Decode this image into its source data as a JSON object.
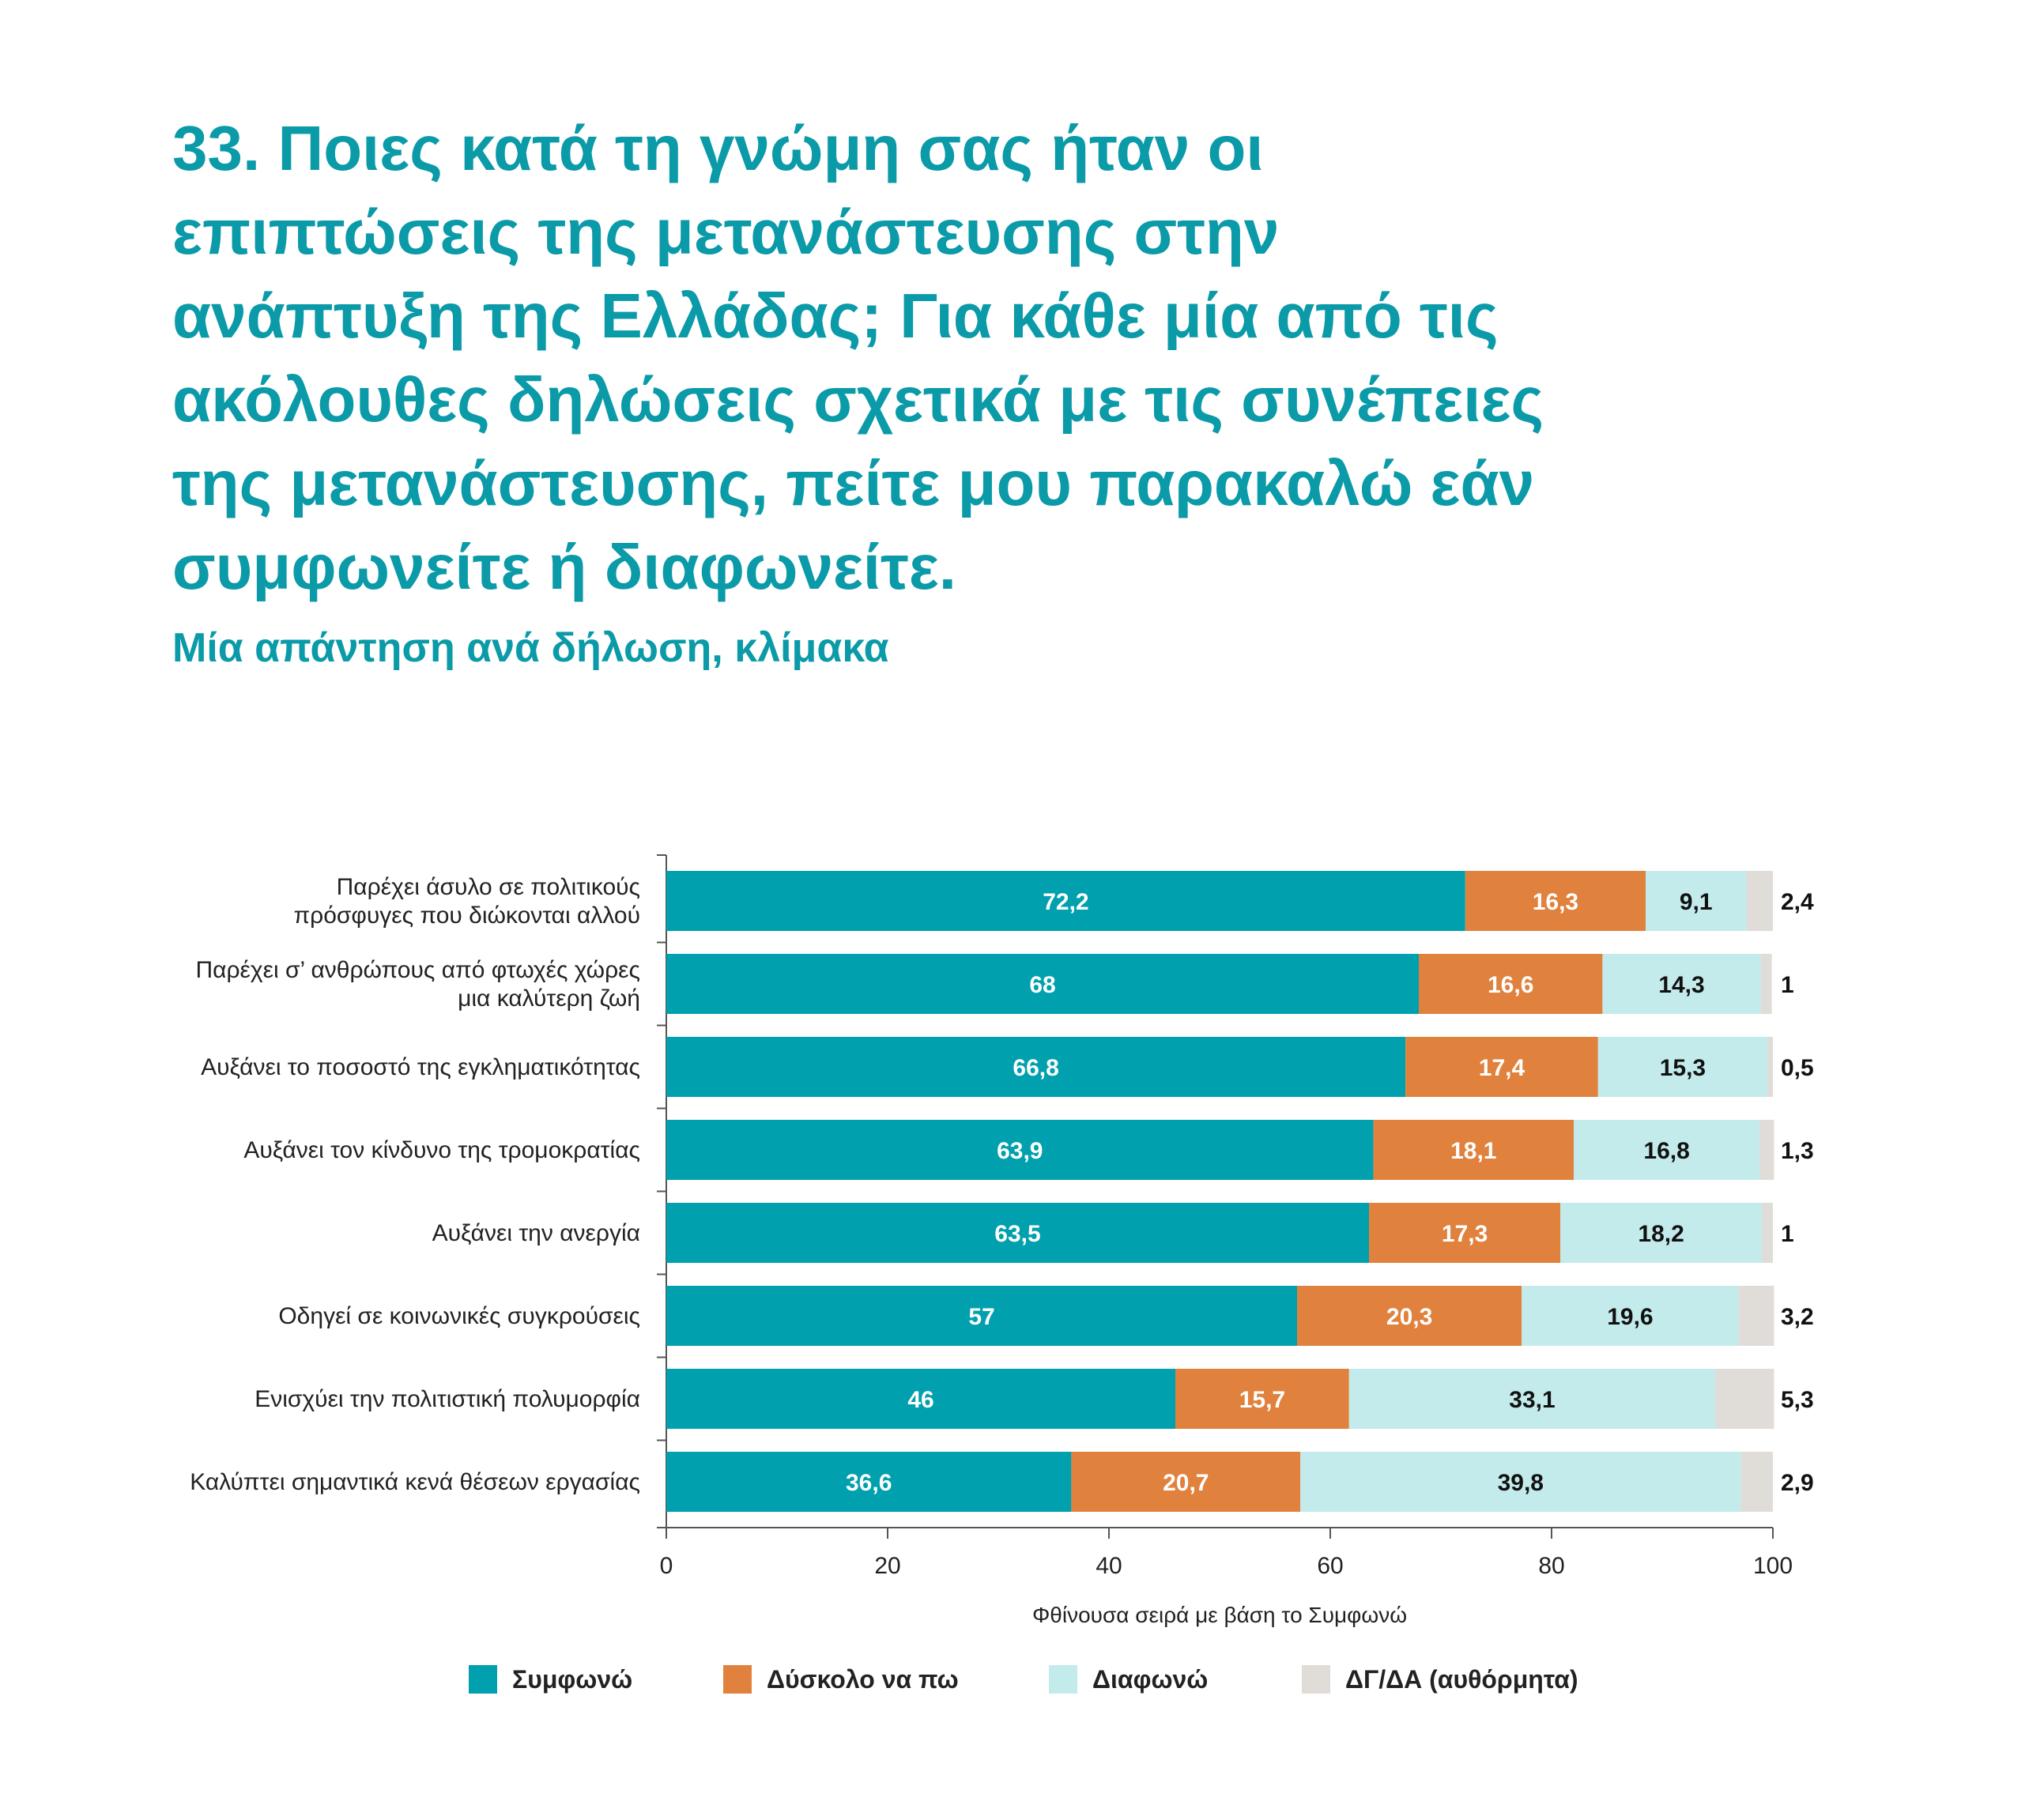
{
  "title": "33. Ποιες κατά τη γνώμη σας ήταν οι\nεπιπτώσεις της μετανάστευσης στην\nανάπτυξη της Ελλάδας; Για κάθε μία από τις\nακόλουθες δηλώσεις σχετικά με τις συνέπειες\nτης μετανάστευσης, πείτε μου παρακαλώ εάν\nσυμφωνείτε ή διαφωνείτε.",
  "subtitle": "Μία απάντηση ανά δήλωση, κλίμακα",
  "chart_data": {
    "type": "bar",
    "orientation": "horizontal",
    "stacked": true,
    "xlabel": "Φθίνουσα σειρά με βάση το Συμφωνώ",
    "xlim": [
      0,
      100
    ],
    "xticks": [
      "0",
      "20",
      "40",
      "60",
      "80",
      "100"
    ],
    "legend_position": "bottom",
    "categories": [
      [
        "Παρέχει άσυλο σε πολιτικούς",
        "πρόσφυγες που διώκονται αλλού"
      ],
      [
        "Παρέχει σ’ ανθρώπους από φτωχές χώρες",
        "μια καλύτερη ζωή"
      ],
      [
        "Αυξάνει το ποσοστό της εγκληματικότητας"
      ],
      [
        "Αυξάνει τον κίνδυνο της τρομοκρατίας"
      ],
      [
        "Αυξάνει την ανεργία"
      ],
      [
        "Οδηγεί σε κοινωνικές συγκρούσεις"
      ],
      [
        "Ενισχύει την πολιτιστική πολυμορφία"
      ],
      [
        "Καλύπτει σημαντικά κενά θέσεων εργασίας"
      ]
    ],
    "series": [
      {
        "name": "Συμφωνώ",
        "color": "#00a0ae",
        "label_color": "#ffffff",
        "values": [
          72.2,
          68,
          66.8,
          63.9,
          63.5,
          57,
          46,
          36.6
        ],
        "labels": [
          "72,2",
          "68",
          "66,8",
          "63,9",
          "63,5",
          "57",
          "46",
          "36,6"
        ]
      },
      {
        "name": "Δύσκολο να πω",
        "color": "#e0823d",
        "label_color": "#ffffff",
        "values": [
          16.3,
          16.6,
          17.4,
          18.1,
          17.3,
          20.3,
          15.7,
          20.7
        ],
        "labels": [
          "16,3",
          "16,6",
          "17,4",
          "18,1",
          "17,3",
          "20,3",
          "15,7",
          "20,7"
        ]
      },
      {
        "name": "Διαφωνώ",
        "color": "#c4ebec",
        "label_color": "#111111",
        "values": [
          9.1,
          14.3,
          15.3,
          16.8,
          18.2,
          19.6,
          33.1,
          39.8
        ],
        "labels": [
          "9,1",
          "14,3",
          "15,3",
          "16,8",
          "18,2",
          "19,6",
          "33,1",
          "39,8"
        ]
      },
      {
        "name": "ΔΓ/ΔΑ (αυθόρμητα)",
        "color": "#e0dcd8",
        "label_color": "#111111",
        "label_outside": true,
        "values": [
          2.4,
          1,
          0.5,
          1.3,
          1,
          3.2,
          5.3,
          2.9
        ],
        "labels": [
          "2,4",
          "1",
          "0,5",
          "1,3",
          "1",
          "3,2",
          "5,3",
          "2,9"
        ]
      }
    ]
  }
}
